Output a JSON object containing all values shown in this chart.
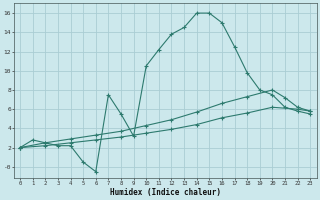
{
  "xlabel": "Humidex (Indice chaleur)",
  "bg_color": "#cce8ec",
  "grid_color": "#aacdd4",
  "line_color": "#2d7a6e",
  "xlim": [
    -0.5,
    23.5
  ],
  "ylim": [
    -1.2,
    17.0
  ],
  "xticks": [
    0,
    1,
    2,
    3,
    4,
    5,
    6,
    7,
    8,
    9,
    10,
    11,
    12,
    13,
    14,
    15,
    16,
    17,
    18,
    19,
    20,
    21,
    22,
    23
  ],
  "yticks": [
    0,
    2,
    4,
    6,
    8,
    10,
    12,
    14,
    16
  ],
  "ytick_labels": [
    "-0",
    "2",
    "4",
    "6",
    "8",
    "10",
    "12",
    "14",
    "16"
  ],
  "line1_x": [
    0,
    1,
    2,
    3,
    4,
    5,
    6,
    7,
    8,
    9,
    10,
    11,
    12,
    13,
    14,
    15,
    16,
    17,
    18,
    19,
    20,
    21,
    22,
    23
  ],
  "line1_y": [
    2.0,
    2.8,
    2.5,
    2.2,
    2.2,
    0.5,
    -0.5,
    7.5,
    5.5,
    3.2,
    10.5,
    12.2,
    13.8,
    14.5,
    16.0,
    16.0,
    15.0,
    12.5,
    9.8,
    8.0,
    7.5,
    6.2,
    5.8,
    5.5
  ],
  "line2_x": [
    0,
    2,
    4,
    6,
    8,
    10,
    12,
    14,
    16,
    18,
    20,
    21,
    22,
    23
  ],
  "line2_y": [
    2.0,
    2.5,
    2.9,
    3.3,
    3.7,
    4.3,
    4.9,
    5.7,
    6.6,
    7.3,
    8.0,
    7.2,
    6.2,
    5.8
  ],
  "line3_x": [
    0,
    2,
    4,
    6,
    8,
    10,
    12,
    14,
    16,
    18,
    20,
    22,
    23
  ],
  "line3_y": [
    2.0,
    2.2,
    2.5,
    2.8,
    3.1,
    3.5,
    3.9,
    4.4,
    5.1,
    5.6,
    6.2,
    6.0,
    5.8
  ]
}
